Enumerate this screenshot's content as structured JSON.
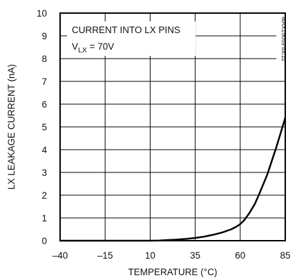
{
  "chart_data": {
    "type": "line",
    "title": "",
    "xlabel": "TEMPERATURE (°C)",
    "ylabel": "LX LEAKAGE CURRENT (nA)",
    "xlim": [
      -40,
      85
    ],
    "ylim": [
      0,
      10
    ],
    "xticks": [
      -40,
      -15,
      10,
      35,
      60,
      85
    ],
    "yticks": [
      0,
      1,
      2,
      3,
      4,
      5,
      6,
      7,
      8,
      9,
      10
    ],
    "grid": true,
    "annotation": {
      "line1": "CURRENT INTO LX PINS",
      "line2_main": "V",
      "line2_sub": "LX",
      "line2_rest": " = 70V"
    },
    "figure_id": "MAX15059 toc12",
    "line_color": "#000000",
    "series": [
      {
        "x": [
          -40,
          0,
          10,
          15,
          20,
          25,
          30,
          35,
          40,
          45,
          50,
          55,
          58,
          60,
          62,
          65,
          68,
          70,
          75,
          80,
          85
        ],
        "y": [
          0,
          0,
          0,
          0.01,
          0.03,
          0.05,
          0.08,
          0.12,
          0.18,
          0.26,
          0.36,
          0.5,
          0.62,
          0.73,
          0.88,
          1.2,
          1.6,
          1.95,
          2.9,
          4.1,
          5.4
        ]
      }
    ]
  }
}
